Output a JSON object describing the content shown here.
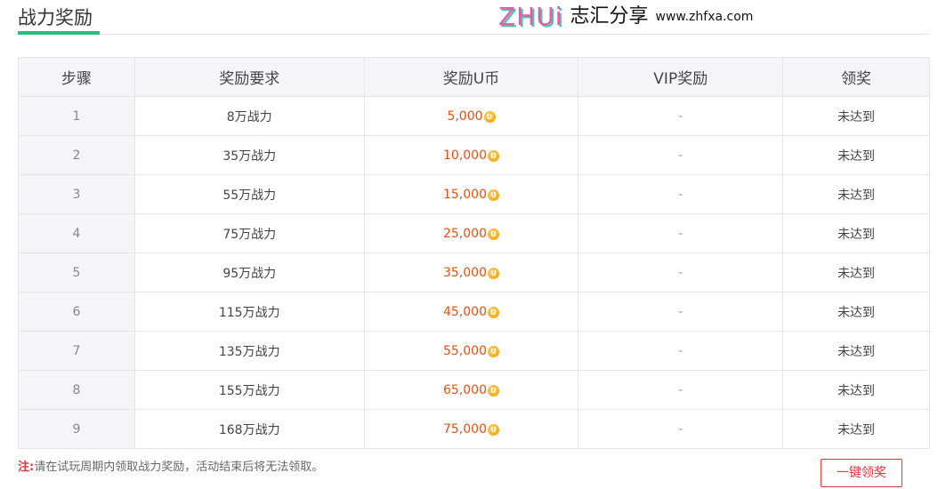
{
  "title": "战力奖励",
  "table": {
    "headers": [
      "步骤",
      "奖励要求",
      "奖励U币",
      "VIP奖励",
      "领奖"
    ],
    "rows": [
      {
        "step": "1",
        "req": "8万战力",
        "coins": "5,000",
        "vip": "-",
        "status": "未达到"
      },
      {
        "step": "2",
        "req": "35万战力",
        "coins": "10,000",
        "vip": "-",
        "status": "未达到"
      },
      {
        "step": "3",
        "req": "55万战力",
        "coins": "15,000",
        "vip": "-",
        "status": "未达到"
      },
      {
        "step": "4",
        "req": "75万战力",
        "coins": "25,000",
        "vip": "-",
        "status": "未达到"
      },
      {
        "step": "5",
        "req": "95万战力",
        "coins": "35,000",
        "vip": "-",
        "status": "未达到"
      },
      {
        "step": "6",
        "req": "115万战力",
        "coins": "45,000",
        "vip": "-",
        "status": "未达到"
      },
      {
        "step": "7",
        "req": "135万战力",
        "coins": "55,000",
        "vip": "-",
        "status": "未达到"
      },
      {
        "step": "8",
        "req": "155万战力",
        "coins": "65,000",
        "vip": "-",
        "status": "未达到"
      },
      {
        "step": "9",
        "req": "168万战力",
        "coins": "75,000",
        "vip": "-",
        "status": "未达到"
      }
    ]
  },
  "note": {
    "label": "注:",
    "text": "请在试玩周期内领取战力奖励，活动结束后将无法领取。"
  },
  "claim_all_label": "一键领奖",
  "watermark": {
    "logo": "ZHUi",
    "name": "志汇分享",
    "url": "www.zhfxa.com"
  },
  "colors": {
    "accent": "#2dba7a",
    "coin": "#e8500f",
    "button": "#e4393c"
  }
}
